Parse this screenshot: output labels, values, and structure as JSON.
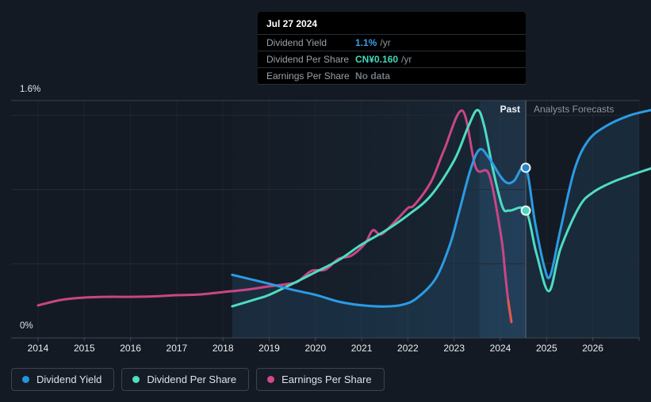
{
  "tooltip": {
    "title": "Jul 27 2024",
    "rows": [
      {
        "label": "Dividend Yield",
        "value": "1.1%",
        "suffix": "/yr",
        "value_color": "#36a2e8"
      },
      {
        "label": "Dividend Per Share",
        "value": "CN¥0.160",
        "suffix": "/yr",
        "value_color": "#43d9c0"
      },
      {
        "label": "Earnings Per Share",
        "value": "No data",
        "suffix": "",
        "value_color": "#6e7882"
      }
    ]
  },
  "zones": {
    "past_label": "Past",
    "forecast_label": "Analysts Forecasts"
  },
  "legend": {
    "items": [
      {
        "label": "Dividend Yield",
        "color": "#2196df"
      },
      {
        "label": "Dividend Per Share",
        "color": "#4ee0c2"
      },
      {
        "label": "Earnings Per Share",
        "color": "#d4498c"
      }
    ]
  },
  "chart_data": {
    "type": "line",
    "title": "",
    "xlabel": "",
    "ylabel": "",
    "y_axis": {
      "unit": "%",
      "min": 0,
      "max": 1.6,
      "top_label": "1.6%",
      "bottom_label": "0%",
      "gridlines_pct": [
        0.5,
        1.0,
        1.5
      ],
      "top_line_pct": 1.6
    },
    "x_axis": {
      "tick_years": [
        2014,
        2015,
        2016,
        2017,
        2018,
        2019,
        2020,
        2021,
        2022,
        2023,
        2024,
        2025,
        2026,
        2027
      ],
      "tick_labels": [
        "2014",
        "2015",
        "2016",
        "2017",
        "2018",
        "2019",
        "2020",
        "2021",
        "2022",
        "2023",
        "2024",
        "2025",
        "2026"
      ]
    },
    "divider_year": 2024.55,
    "ltm_band_start_year": 2023.55,
    "shaded_past_start_year": 2018.2,
    "note": "Dividend Per Share and Earnings Per Share are plotted rescaled onto the 0-1.6% yield axis; values below are axis-equivalent percents. At cursor (Jul 27 2024): Dividend Yield 1.1%/yr, Dividend Per Share CN¥0.160/yr, Earnings Per Share no data.",
    "series": [
      {
        "name": "Earnings Per Share",
        "key": "eps",
        "color": "#c94685",
        "tip_color": "#e05a4b",
        "tip_from_index": 31,
        "points": [
          [
            2014.0,
            0.219
          ],
          [
            2014.5,
            0.256
          ],
          [
            2015.0,
            0.272
          ],
          [
            2015.5,
            0.277
          ],
          [
            2016.0,
            0.277
          ],
          [
            2016.5,
            0.28
          ],
          [
            2017.0,
            0.288
          ],
          [
            2017.5,
            0.293
          ],
          [
            2018.0,
            0.309
          ],
          [
            2018.5,
            0.325
          ],
          [
            2019.0,
            0.347
          ],
          [
            2019.5,
            0.368
          ],
          [
            2019.64,
            0.384
          ],
          [
            2019.92,
            0.453
          ],
          [
            2020.21,
            0.459
          ],
          [
            2020.5,
            0.533
          ],
          [
            2020.78,
            0.555
          ],
          [
            2021.07,
            0.635
          ],
          [
            2021.24,
            0.725
          ],
          [
            2021.43,
            0.699
          ],
          [
            2021.77,
            0.8
          ],
          [
            2022.0,
            0.875
          ],
          [
            2022.14,
            0.896
          ],
          [
            2022.5,
            1.051
          ],
          [
            2022.78,
            1.264
          ],
          [
            2023.18,
            1.531
          ],
          [
            2023.47,
            1.147
          ],
          [
            2023.76,
            1.099
          ],
          [
            2024.02,
            0.677
          ],
          [
            2024.1,
            0.45
          ],
          [
            2024.17,
            0.251
          ],
          [
            2024.24,
            0.107
          ]
        ]
      },
      {
        "name": "Dividend Per Share",
        "key": "dps",
        "color": "#4edcc3",
        "points": [
          [
            2018.2,
            0.213
          ],
          [
            2018.7,
            0.26
          ],
          [
            2019.0,
            0.29
          ],
          [
            2019.6,
            0.38
          ],
          [
            2020.0,
            0.443
          ],
          [
            2020.5,
            0.523
          ],
          [
            2021.0,
            0.63
          ],
          [
            2021.5,
            0.72
          ],
          [
            2022.0,
            0.827
          ],
          [
            2022.5,
            0.96
          ],
          [
            2023.0,
            1.195
          ],
          [
            2023.3,
            1.42
          ],
          [
            2023.5,
            1.536
          ],
          [
            2023.65,
            1.43
          ],
          [
            2023.85,
            1.12
          ],
          [
            2024.05,
            0.88
          ],
          [
            2024.2,
            0.858
          ],
          [
            2024.55,
            0.858
          ],
          [
            2024.78,
            0.57
          ],
          [
            2025.05,
            0.315
          ],
          [
            2025.3,
            0.6
          ],
          [
            2025.7,
            0.88
          ],
          [
            2026.0,
            0.98
          ],
          [
            2026.5,
            1.06
          ],
          [
            2027.25,
            1.142
          ]
        ]
      },
      {
        "name": "Dividend Yield",
        "key": "dy",
        "color": "#2b9ce4",
        "area_fill": "rgba(54,140,205,0.14)",
        "points": [
          [
            2018.2,
            0.425
          ],
          [
            2018.6,
            0.395
          ],
          [
            2019.0,
            0.365
          ],
          [
            2019.5,
            0.325
          ],
          [
            2020.0,
            0.29
          ],
          [
            2020.5,
            0.245
          ],
          [
            2021.0,
            0.22
          ],
          [
            2021.5,
            0.212
          ],
          [
            2021.9,
            0.225
          ],
          [
            2022.2,
            0.27
          ],
          [
            2022.6,
            0.4
          ],
          [
            2022.9,
            0.62
          ],
          [
            2023.1,
            0.84
          ],
          [
            2023.35,
            1.13
          ],
          [
            2023.55,
            1.27
          ],
          [
            2023.75,
            1.215
          ],
          [
            2024.0,
            1.09
          ],
          [
            2024.15,
            1.045
          ],
          [
            2024.3,
            1.06
          ],
          [
            2024.55,
            1.147
          ],
          [
            2024.75,
            0.78
          ],
          [
            2024.95,
            0.48
          ],
          [
            2025.08,
            0.42
          ],
          [
            2025.3,
            0.73
          ],
          [
            2025.6,
            1.13
          ],
          [
            2025.9,
            1.33
          ],
          [
            2026.3,
            1.43
          ],
          [
            2026.8,
            1.5
          ],
          [
            2027.25,
            1.535
          ]
        ]
      }
    ],
    "markers": [
      {
        "series": "dy",
        "year": 2024.55,
        "value_pct": 1.147,
        "color": "#2586c8"
      },
      {
        "series": "dps",
        "year": 2024.55,
        "value_pct": 0.858,
        "color": "#4fd4bd"
      }
    ]
  }
}
